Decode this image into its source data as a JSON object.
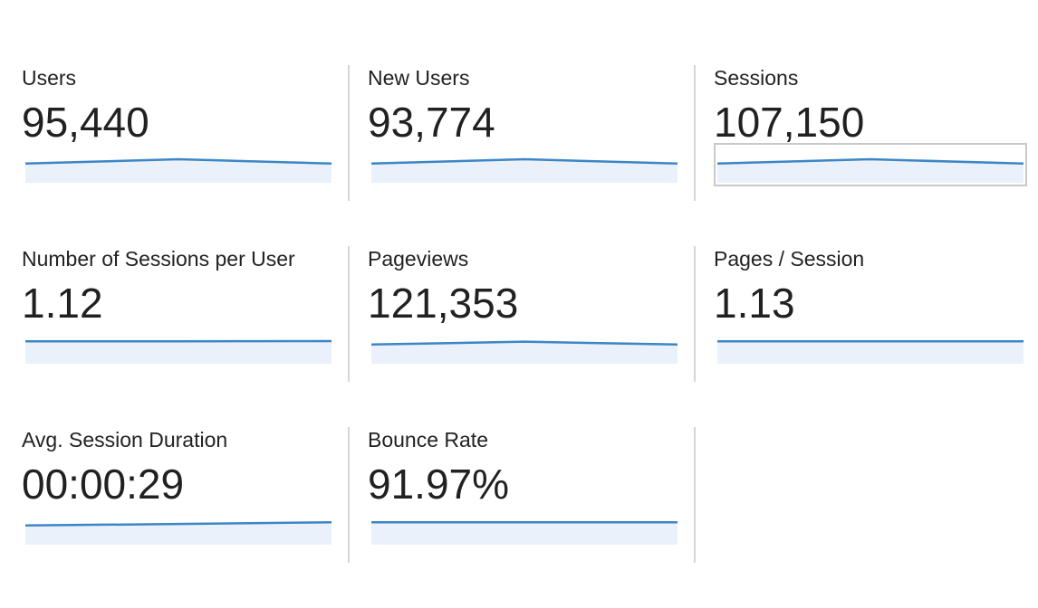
{
  "colors": {
    "sparkline_stroke": "#3d86c6",
    "sparkline_fill": "#eaf1fa",
    "divider": "#d6d6d6",
    "text": "#222222"
  },
  "metrics": [
    {
      "label": "Users",
      "value": "95,440",
      "trend": [
        0.55,
        0.75,
        0.55
      ],
      "selected": false
    },
    {
      "label": "New Users",
      "value": "93,774",
      "trend": [
        0.55,
        0.75,
        0.55
      ],
      "selected": false
    },
    {
      "label": "Sessions",
      "value": "107,150",
      "trend": [
        0.55,
        0.75,
        0.55
      ],
      "selected": true
    },
    {
      "label": "Number of Sessions per User",
      "value": "1.12",
      "trend": [
        0.7,
        0.7,
        0.71
      ],
      "selected": false
    },
    {
      "label": "Pageviews",
      "value": "121,353",
      "trend": [
        0.55,
        0.68,
        0.55
      ],
      "selected": false
    },
    {
      "label": "Pages / Session",
      "value": "1.13",
      "trend": [
        0.7,
        0.7,
        0.7
      ],
      "selected": false
    },
    {
      "label": "Avg. Session Duration",
      "value": "00:00:29",
      "trend": [
        0.55,
        0.62,
        0.7
      ],
      "selected": false
    },
    {
      "label": "Bounce Rate",
      "value": "91.97%",
      "trend": [
        0.7,
        0.7,
        0.7
      ],
      "selected": false
    }
  ]
}
